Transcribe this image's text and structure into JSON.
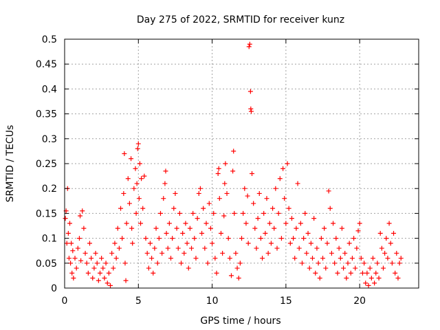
{
  "chart_data": {
    "type": "scatter",
    "title": "Day 275 of 2022, SRMTID for receiver kunz",
    "xlabel": "GPS time / hours",
    "ylabel": "SRMTID / TECUs",
    "xlim": [
      0,
      24
    ],
    "ylim": [
      0,
      0.5
    ],
    "x_ticks": [
      0,
      5,
      10,
      15,
      20
    ],
    "x_tick_labels": [
      "0",
      "5",
      "10",
      "15",
      "20"
    ],
    "y_ticks": [
      0,
      0.05,
      0.1,
      0.15,
      0.2,
      0.25,
      0.3,
      0.35,
      0.4,
      0.45,
      0.5
    ],
    "y_tick_labels": [
      "0",
      "0.05",
      "0.1",
      "0.15",
      "0.2",
      "0.25",
      "0.3",
      "0.35",
      "0.4",
      "0.45",
      "0.5"
    ],
    "grid": true,
    "marker": "plus",
    "series": [
      {
        "name": "SRMTID",
        "color": "#ff0000",
        "points": [
          [
            0.05,
            0.14
          ],
          [
            0.1,
            0.155
          ],
          [
            0.15,
            0.09
          ],
          [
            0.2,
            0.2
          ],
          [
            0.25,
            0.11
          ],
          [
            0.3,
            0.06
          ],
          [
            0.35,
            0.13
          ],
          [
            0.4,
            0.05
          ],
          [
            0.45,
            0.09
          ],
          [
            0.5,
            0.03
          ],
          [
            0.55,
            0.075
          ],
          [
            0.6,
            0.02
          ],
          [
            0.7,
            0.06
          ],
          [
            0.8,
            0.04
          ],
          [
            0.9,
            0.08
          ],
          [
            1.0,
            0.1
          ],
          [
            1.05,
            0.145
          ],
          [
            1.1,
            0.055
          ],
          [
            1.2,
            0.155
          ],
          [
            1.3,
            0.12
          ],
          [
            1.4,
            0.07
          ],
          [
            1.5,
            0.05
          ],
          [
            1.6,
            0.03
          ],
          [
            1.7,
            0.09
          ],
          [
            1.8,
            0.06
          ],
          [
            1.9,
            0.02
          ],
          [
            2.0,
            0.04
          ],
          [
            2.1,
            0.07
          ],
          [
            2.2,
            0.05
          ],
          [
            2.3,
            0.015
          ],
          [
            2.4,
            0.03
          ],
          [
            2.5,
            0.06
          ],
          [
            2.6,
            0.04
          ],
          [
            2.7,
            0.02
          ],
          [
            2.8,
            0.05
          ],
          [
            2.9,
            0.01
          ],
          [
            3.0,
            0.03
          ],
          [
            3.1,
            0.005
          ],
          [
            3.2,
            0.07
          ],
          [
            3.3,
            0.04
          ],
          [
            3.4,
            0.09
          ],
          [
            3.5,
            0.06
          ],
          [
            3.6,
            0.12
          ],
          [
            3.7,
            0.08
          ],
          [
            3.8,
            0.16
          ],
          [
            3.9,
            0.1
          ],
          [
            4.0,
            0.19
          ],
          [
            4.05,
            0.27
          ],
          [
            4.1,
            0.05
          ],
          [
            4.15,
            0.015
          ],
          [
            4.2,
            0.13
          ],
          [
            4.3,
            0.22
          ],
          [
            4.4,
            0.17
          ],
          [
            4.5,
            0.26
          ],
          [
            4.55,
            0.12
          ],
          [
            4.6,
            0.09
          ],
          [
            4.7,
            0.2
          ],
          [
            4.8,
            0.24
          ],
          [
            4.85,
            0.15
          ],
          [
            4.9,
            0.21
          ],
          [
            4.95,
            0.28
          ],
          [
            5.0,
            0.29
          ],
          [
            5.05,
            0.18
          ],
          [
            5.1,
            0.25
          ],
          [
            5.15,
            0.13
          ],
          [
            5.2,
            0.22
          ],
          [
            5.3,
            0.16
          ],
          [
            5.4,
            0.225
          ],
          [
            5.5,
            0.1
          ],
          [
            5.6,
            0.07
          ],
          [
            5.7,
            0.04
          ],
          [
            5.8,
            0.09
          ],
          [
            5.9,
            0.06
          ],
          [
            6.0,
            0.03
          ],
          [
            6.1,
            0.08
          ],
          [
            6.2,
            0.12
          ],
          [
            6.3,
            0.05
          ],
          [
            6.4,
            0.1
          ],
          [
            6.5,
            0.15
          ],
          [
            6.6,
            0.07
          ],
          [
            6.7,
            0.18
          ],
          [
            6.8,
            0.21
          ],
          [
            6.85,
            0.235
          ],
          [
            6.9,
            0.11
          ],
          [
            7.0,
            0.08
          ],
          [
            7.1,
            0.13
          ],
          [
            7.2,
            0.06
          ],
          [
            7.3,
            0.1
          ],
          [
            7.4,
            0.16
          ],
          [
            7.5,
            0.19
          ],
          [
            7.6,
            0.12
          ],
          [
            7.7,
            0.08
          ],
          [
            7.8,
            0.15
          ],
          [
            7.9,
            0.05
          ],
          [
            8.0,
            0.11
          ],
          [
            8.1,
            0.07
          ],
          [
            8.2,
            0.13
          ],
          [
            8.3,
            0.09
          ],
          [
            8.4,
            0.04
          ],
          [
            8.5,
            0.12
          ],
          [
            8.6,
            0.08
          ],
          [
            8.7,
            0.15
          ],
          [
            8.8,
            0.1
          ],
          [
            8.9,
            0.06
          ],
          [
            9.0,
            0.14
          ],
          [
            9.1,
            0.19
          ],
          [
            9.2,
            0.2
          ],
          [
            9.3,
            0.11
          ],
          [
            9.4,
            0.16
          ],
          [
            9.5,
            0.08
          ],
          [
            9.6,
            0.13
          ],
          [
            9.7,
            0.05
          ],
          [
            9.8,
            0.17
          ],
          [
            9.9,
            0.12
          ],
          [
            10.0,
            0.09
          ],
          [
            10.1,
            0.15
          ],
          [
            10.2,
            0.06
          ],
          [
            10.3,
            0.03
          ],
          [
            10.4,
            0.23
          ],
          [
            10.45,
            0.24
          ],
          [
            10.5,
            0.18
          ],
          [
            10.6,
            0.11
          ],
          [
            10.7,
            0.07
          ],
          [
            10.8,
            0.145
          ],
          [
            10.85,
            0.21
          ],
          [
            10.9,
            0.25
          ],
          [
            11.0,
            0.19
          ],
          [
            11.1,
            0.1
          ],
          [
            11.2,
            0.06
          ],
          [
            11.3,
            0.025
          ],
          [
            11.4,
            0.235
          ],
          [
            11.45,
            0.275
          ],
          [
            11.5,
            0.15
          ],
          [
            11.6,
            0.07
          ],
          [
            11.7,
            0.04
          ],
          [
            11.8,
            0.02
          ],
          [
            11.9,
            0.05
          ],
          [
            12.0,
            0.1
          ],
          [
            12.1,
            0.15
          ],
          [
            12.2,
            0.2
          ],
          [
            12.3,
            0.13
          ],
          [
            12.4,
            0.185
          ],
          [
            12.45,
            0.09
          ],
          [
            12.5,
            0.485
          ],
          [
            12.55,
            0.49
          ],
          [
            12.6,
            0.395
          ],
          [
            12.62,
            0.36
          ],
          [
            12.65,
            0.355
          ],
          [
            12.7,
            0.23
          ],
          [
            12.8,
            0.17
          ],
          [
            12.9,
            0.12
          ],
          [
            13.0,
            0.08
          ],
          [
            13.1,
            0.14
          ],
          [
            13.2,
            0.19
          ],
          [
            13.3,
            0.1
          ],
          [
            13.4,
            0.06
          ],
          [
            13.5,
            0.15
          ],
          [
            13.6,
            0.11
          ],
          [
            13.7,
            0.18
          ],
          [
            13.8,
            0.07
          ],
          [
            13.9,
            0.13
          ],
          [
            14.0,
            0.09
          ],
          [
            14.1,
            0.16
          ],
          [
            14.2,
            0.12
          ],
          [
            14.3,
            0.2
          ],
          [
            14.4,
            0.08
          ],
          [
            14.5,
            0.15
          ],
          [
            14.6,
            0.22
          ],
          [
            14.7,
            0.1
          ],
          [
            14.8,
            0.24
          ],
          [
            14.9,
            0.18
          ],
          [
            15.0,
            0.13
          ],
          [
            15.1,
            0.25
          ],
          [
            15.2,
            0.16
          ],
          [
            15.3,
            0.09
          ],
          [
            15.4,
            0.14
          ],
          [
            15.5,
            0.1
          ],
          [
            15.6,
            0.06
          ],
          [
            15.7,
            0.12
          ],
          [
            15.8,
            0.21
          ],
          [
            15.9,
            0.08
          ],
          [
            16.0,
            0.13
          ],
          [
            16.1,
            0.05
          ],
          [
            16.2,
            0.1
          ],
          [
            16.3,
            0.15
          ],
          [
            16.4,
            0.07
          ],
          [
            16.5,
            0.11
          ],
          [
            16.6,
            0.04
          ],
          [
            16.7,
            0.09
          ],
          [
            16.8,
            0.06
          ],
          [
            16.9,
            0.14
          ],
          [
            17.0,
            0.03
          ],
          [
            17.1,
            0.08
          ],
          [
            17.2,
            0.05
          ],
          [
            17.3,
            0.02
          ],
          [
            17.4,
            0.1
          ],
          [
            17.5,
            0.06
          ],
          [
            17.6,
            0.12
          ],
          [
            17.7,
            0.04
          ],
          [
            17.8,
            0.09
          ],
          [
            17.9,
            0.195
          ],
          [
            18.0,
            0.16
          ],
          [
            18.1,
            0.07
          ],
          [
            18.2,
            0.13
          ],
          [
            18.3,
            0.05
          ],
          [
            18.4,
            0.1
          ],
          [
            18.5,
            0.03
          ],
          [
            18.6,
            0.08
          ],
          [
            18.7,
            0.06
          ],
          [
            18.8,
            0.12
          ],
          [
            18.9,
            0.04
          ],
          [
            19.0,
            0.07
          ],
          [
            19.1,
            0.02
          ],
          [
            19.2,
            0.05
          ],
          [
            19.3,
            0.09
          ],
          [
            19.4,
            0.03
          ],
          [
            19.5,
            0.06
          ],
          [
            19.6,
            0.1
          ],
          [
            19.7,
            0.04
          ],
          [
            19.8,
            0.08
          ],
          [
            19.9,
            0.115
          ],
          [
            20.0,
            0.13
          ],
          [
            20.1,
            0.06
          ],
          [
            20.2,
            0.03
          ],
          [
            20.3,
            0.05
          ],
          [
            20.4,
            0.01
          ],
          [
            20.5,
            0.03
          ],
          [
            20.6,
            0.005
          ],
          [
            20.7,
            0.04
          ],
          [
            20.8,
            0.02
          ],
          [
            20.9,
            0.06
          ],
          [
            21.0,
            0.01
          ],
          [
            21.1,
            0.03
          ],
          [
            21.2,
            0.05
          ],
          [
            21.3,
            0.02
          ],
          [
            21.4,
            0.11
          ],
          [
            21.5,
            0.08
          ],
          [
            21.6,
            0.04
          ],
          [
            21.7,
            0.07
          ],
          [
            21.8,
            0.1
          ],
          [
            21.9,
            0.06
          ],
          [
            22.0,
            0.13
          ],
          [
            22.1,
            0.09
          ],
          [
            22.2,
            0.05
          ],
          [
            22.3,
            0.11
          ],
          [
            22.4,
            0.03
          ],
          [
            22.5,
            0.07
          ],
          [
            22.6,
            0.02
          ],
          [
            22.7,
            0.05
          ],
          [
            22.8,
            0.06
          ]
        ]
      }
    ]
  }
}
